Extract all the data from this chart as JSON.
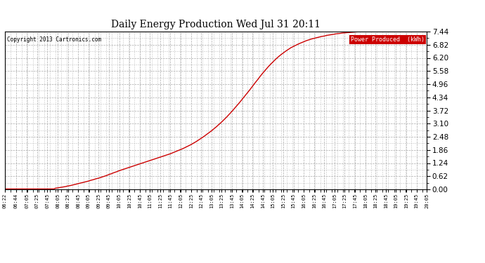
{
  "title": "Daily Energy Production Wed Jul 31 20:11",
  "copyright_text": "Copyright 2013 Cartronics.com",
  "legend_label": "Power Produced  (kWh)",
  "legend_bg": "#cc0000",
  "legend_text_color": "#ffffff",
  "line_color": "#cc0000",
  "background_color": "#ffffff",
  "grid_color": "#aaaaaa",
  "y_ticks": [
    0.0,
    0.62,
    1.24,
    1.86,
    2.48,
    3.1,
    3.72,
    4.34,
    4.96,
    5.58,
    6.2,
    6.82,
    7.44
  ],
  "x_tick_labels": [
    "06:22",
    "06:44",
    "07:05",
    "07:25",
    "07:45",
    "08:05",
    "08:25",
    "08:45",
    "09:05",
    "09:25",
    "09:45",
    "10:05",
    "10:25",
    "10:45",
    "11:05",
    "11:25",
    "11:45",
    "12:05",
    "12:25",
    "12:45",
    "13:05",
    "13:25",
    "13:45",
    "14:05",
    "14:25",
    "14:45",
    "15:05",
    "15:25",
    "15:45",
    "16:05",
    "16:25",
    "16:45",
    "17:05",
    "17:25",
    "17:45",
    "18:05",
    "18:25",
    "18:45",
    "19:05",
    "19:25",
    "19:45",
    "20:05"
  ],
  "data_x_minutes": [
    382,
    384,
    386,
    388,
    390,
    392,
    394,
    396,
    398,
    400,
    402,
    404,
    406,
    408,
    410,
    412,
    414,
    416,
    418,
    420,
    422,
    424,
    426,
    428,
    430,
    432,
    434,
    436,
    438,
    440,
    442,
    444,
    446,
    448,
    450,
    452,
    454,
    456,
    458,
    460,
    462,
    464,
    466,
    468,
    470,
    472,
    474,
    476,
    478,
    480,
    485,
    490,
    495,
    500,
    505,
    510,
    515,
    520,
    525,
    530,
    535,
    540,
    545,
    550,
    555,
    560,
    565,
    570,
    575,
    580,
    585,
    590,
    595,
    600,
    605,
    610,
    615,
    620,
    625,
    630,
    635,
    640,
    645,
    650,
    655,
    660,
    665,
    670,
    675,
    680,
    685,
    690,
    695,
    700,
    705,
    710,
    715,
    720,
    725,
    730,
    735,
    740,
    745,
    750,
    755,
    760,
    765,
    770,
    775,
    780,
    785,
    790,
    795,
    800,
    805,
    810,
    815,
    820,
    825,
    830,
    835,
    840,
    845,
    850,
    855,
    860,
    865,
    870,
    875,
    880,
    885,
    890,
    895,
    900,
    905,
    910,
    915,
    920,
    925,
    930,
    935,
    940,
    945,
    950,
    955,
    960,
    965,
    970,
    975,
    980,
    985,
    990,
    995,
    1000,
    1005,
    1010,
    1015,
    1020,
    1025,
    1030,
    1035,
    1040,
    1045,
    1050,
    1055,
    1060,
    1065,
    1070,
    1075,
    1080,
    1085,
    1090,
    1095,
    1100,
    1105,
    1110,
    1115,
    1120,
    1125,
    1130,
    1135,
    1140,
    1145,
    1150,
    1155,
    1160,
    1165,
    1170,
    1175,
    1180,
    1185,
    1190,
    1195,
    1200,
    1205
  ],
  "data_y": [
    0.02,
    0.02,
    0.02,
    0.02,
    0.02,
    0.02,
    0.02,
    0.02,
    0.02,
    0.02,
    0.02,
    0.02,
    0.02,
    0.02,
    0.02,
    0.02,
    0.02,
    0.02,
    0.02,
    0.02,
    0.02,
    0.02,
    0.02,
    0.02,
    0.02,
    0.02,
    0.02,
    0.02,
    0.02,
    0.02,
    0.02,
    0.02,
    0.02,
    0.02,
    0.02,
    0.02,
    0.02,
    0.02,
    0.02,
    0.02,
    0.02,
    0.02,
    0.02,
    0.02,
    0.02,
    0.02,
    0.02,
    0.02,
    0.02,
    0.05,
    0.07,
    0.09,
    0.11,
    0.13,
    0.16,
    0.18,
    0.21,
    0.24,
    0.27,
    0.3,
    0.33,
    0.36,
    0.39,
    0.43,
    0.46,
    0.5,
    0.53,
    0.57,
    0.61,
    0.65,
    0.7,
    0.74,
    0.79,
    0.83,
    0.88,
    0.92,
    0.96,
    1.0,
    1.04,
    1.08,
    1.12,
    1.16,
    1.2,
    1.24,
    1.28,
    1.32,
    1.36,
    1.4,
    1.44,
    1.48,
    1.52,
    1.56,
    1.6,
    1.64,
    1.68,
    1.73,
    1.78,
    1.83,
    1.88,
    1.93,
    1.99,
    2.05,
    2.11,
    2.18,
    2.25,
    2.33,
    2.41,
    2.49,
    2.58,
    2.67,
    2.76,
    2.86,
    2.96,
    3.07,
    3.18,
    3.3,
    3.42,
    3.55,
    3.68,
    3.82,
    3.96,
    4.1,
    4.25,
    4.4,
    4.55,
    4.7,
    4.86,
    5.02,
    5.17,
    5.33,
    5.48,
    5.62,
    5.76,
    5.89,
    6.01,
    6.13,
    6.24,
    6.34,
    6.43,
    6.52,
    6.6,
    6.68,
    6.74,
    6.8,
    6.86,
    6.91,
    6.96,
    7.01,
    7.05,
    7.09,
    7.12,
    7.15,
    7.18,
    7.21,
    7.23,
    7.26,
    7.28,
    7.3,
    7.32,
    7.34,
    7.35,
    7.37,
    7.38,
    7.39,
    7.4,
    7.41,
    7.42,
    7.43,
    7.43,
    7.44,
    7.44,
    7.44,
    7.44,
    7.44,
    7.44,
    7.44,
    7.44,
    7.44,
    7.44,
    7.44,
    7.44,
    7.44,
    7.44,
    7.44,
    7.44,
    7.44,
    7.44,
    7.44,
    7.44,
    7.44,
    7.44,
    7.44,
    7.44,
    7.44,
    7.44
  ]
}
